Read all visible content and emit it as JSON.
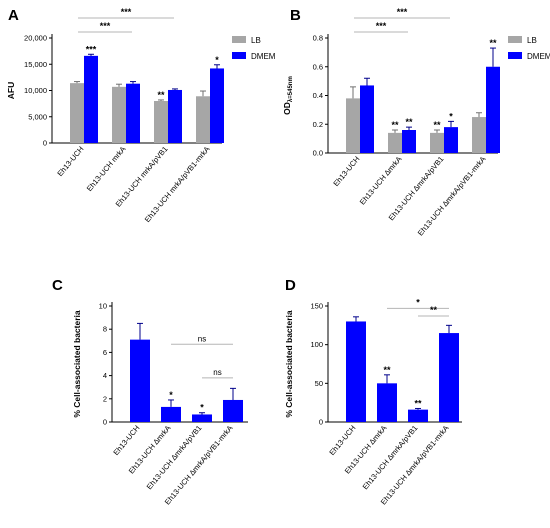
{
  "chart_data": [
    {
      "panel": "A",
      "type": "bar",
      "ylabel": "AFU",
      "ylim": [
        0,
        20000
      ],
      "yticks": [
        "0",
        "5,000",
        "10,000",
        "15,000",
        "20,000"
      ],
      "yticks_values": [
        0,
        5000,
        10000,
        15000,
        20000
      ],
      "categories": [
        "Eh13-UCH",
        "Eh13-UCH mrkA",
        "Eh13-UCH mrkA/pVB1",
        "Eh13-UCH mrkA/pVB1-mrkA"
      ],
      "legend": [
        "LB",
        "DMEM"
      ],
      "legend_position": "top-right",
      "colors": {
        "LB": "#a6a6a6",
        "DMEM": "#0000ff"
      },
      "series": [
        {
          "name": "LB",
          "values": [
            11400,
            10700,
            8000,
            8900
          ],
          "errors": [
            300,
            500,
            200,
            1000
          ],
          "stars": [
            "",
            "",
            "**",
            ""
          ]
        },
        {
          "name": "DMEM",
          "values": [
            16600,
            11300,
            10100,
            14200
          ],
          "errors": [
            300,
            400,
            200,
            700
          ],
          "stars": [
            "***",
            "",
            "",
            "*"
          ]
        }
      ],
      "brackets": [
        {
          "label": "***",
          "from": 0,
          "to": 2
        },
        {
          "label": "***",
          "from": 0,
          "to": 1
        }
      ]
    },
    {
      "panel": "B",
      "type": "bar",
      "ylabel": "OD",
      "ylabel_sub": "λ=545nm",
      "ylim": [
        0,
        0.8
      ],
      "yticks": [
        "0.0",
        "0.2",
        "0.4",
        "0.6",
        "0.8"
      ],
      "yticks_values": [
        0,
        0.2,
        0.4,
        0.6,
        0.8
      ],
      "categories": [
        "Eh13-UCH",
        "Eh13-UCH ∆mrkA",
        "Eh13-UCH ∆mrkA/pVB1",
        "Eh13-UCH ∆mrkA/pVB1-mrkA"
      ],
      "legend": [
        "LB",
        "DMEM"
      ],
      "legend_position": "top-right",
      "colors": {
        "LB": "#a6a6a6",
        "DMEM": "#0000ff"
      },
      "series": [
        {
          "name": "LB",
          "values": [
            0.38,
            0.14,
            0.14,
            0.25
          ],
          "errors": [
            0.08,
            0.02,
            0.02,
            0.03
          ],
          "stars": [
            "",
            "**",
            "**",
            ""
          ]
        },
        {
          "name": "DMEM",
          "values": [
            0.47,
            0.16,
            0.18,
            0.6
          ],
          "errors": [
            0.05,
            0.02,
            0.04,
            0.13
          ],
          "stars": [
            "",
            "**",
            "*",
            "**"
          ]
        }
      ],
      "brackets": [
        {
          "label": "***",
          "from": 0,
          "to": 2
        },
        {
          "label": "***",
          "from": 0,
          "to": 1
        }
      ]
    },
    {
      "panel": "C",
      "type": "bar",
      "ylabel": "% Cell-associated bacteria",
      "ylim": [
        0,
        10
      ],
      "yticks": [
        "0",
        "2",
        "4",
        "6",
        "8",
        "10"
      ],
      "yticks_values": [
        0,
        2,
        4,
        6,
        8,
        10
      ],
      "categories": [
        "Eh13-UCH",
        "Eh13-UCH ∆mrkA",
        "Eh13-UCH ∆mrkA/pVB1",
        "Eh13-UCH ∆mrkA/pVB1-mrkA"
      ],
      "colors": {
        "bar": "#0000ff"
      },
      "series": [
        {
          "name": "",
          "values": [
            7.1,
            1.3,
            0.65,
            1.9
          ],
          "errors": [
            1.4,
            0.6,
            0.15,
            1.0
          ],
          "stars": [
            "",
            "*",
            "*",
            ""
          ]
        }
      ],
      "brackets": [
        {
          "label": "ns",
          "from": 1,
          "to": 3
        },
        {
          "label": "ns",
          "from": 2,
          "to": 3
        }
      ]
    },
    {
      "panel": "D",
      "type": "bar",
      "ylabel": "% Cell-associated bacteria",
      "ylim": [
        0,
        150
      ],
      "yticks": [
        "0",
        "50",
        "100",
        "150"
      ],
      "yticks_values": [
        0,
        50,
        100,
        150
      ],
      "categories": [
        "Eh13-UCH",
        "Eh13-UCH ∆mrkA",
        "Eh13-UCH ∆mrkA/pVB1",
        "Eh13-UCH ∆mrkA/pVB1-mrkA"
      ],
      "colors": {
        "bar": "#0000ff"
      },
      "series": [
        {
          "name": "",
          "values": [
            130,
            50,
            16,
            115
          ],
          "errors": [
            6,
            11,
            1.5,
            10
          ],
          "stars": [
            "",
            "**",
            "**",
            ""
          ]
        }
      ],
      "brackets": [
        {
          "label": "*",
          "from": 1,
          "to": 3
        },
        {
          "label": "**",
          "from": 2,
          "to": 3
        }
      ]
    }
  ]
}
